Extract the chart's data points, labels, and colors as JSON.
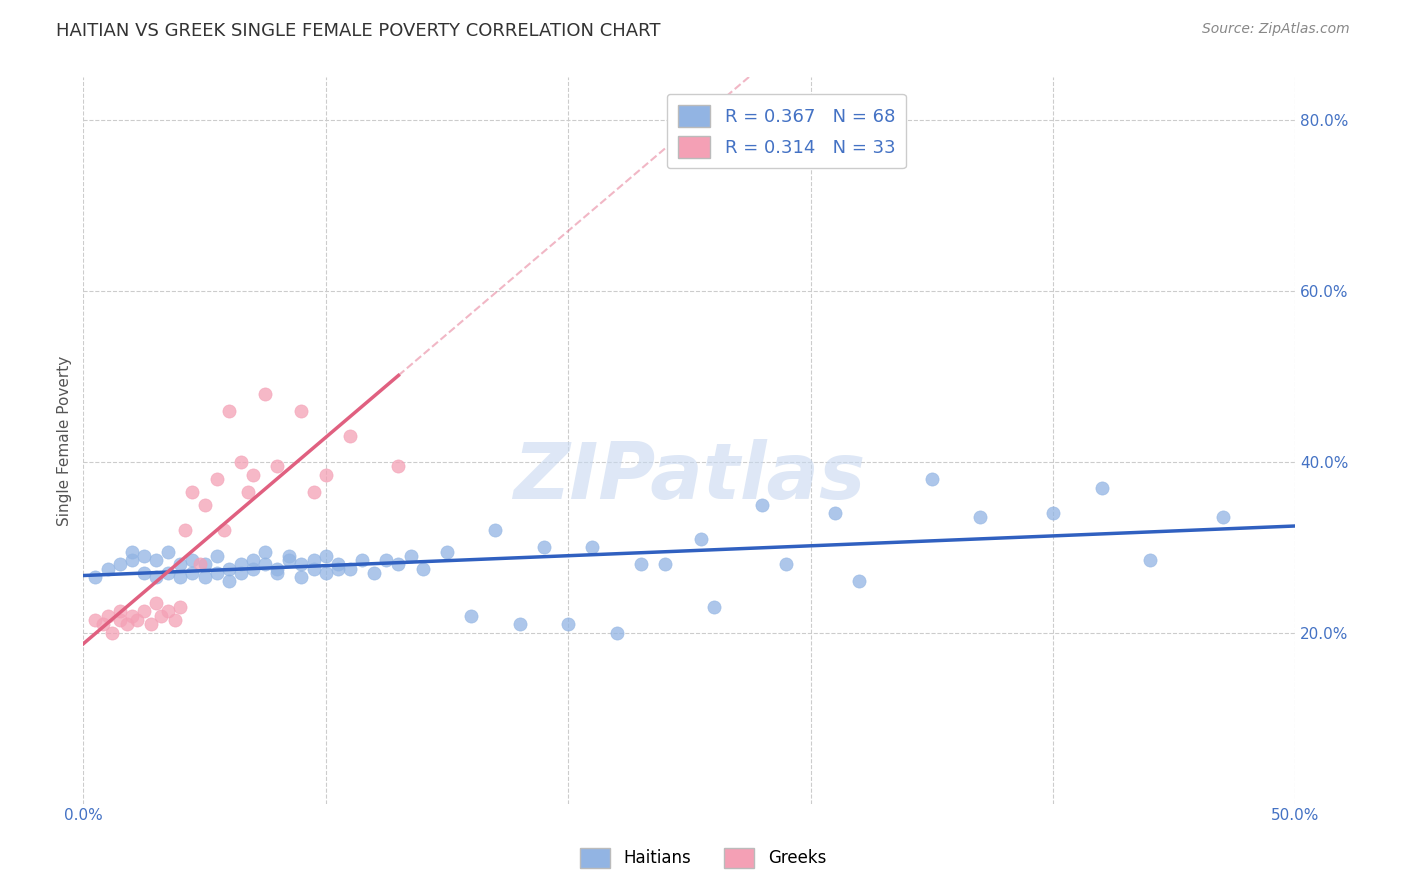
{
  "title": "HAITIAN VS GREEK SINGLE FEMALE POVERTY CORRELATION CHART",
  "source": "Source: ZipAtlas.com",
  "ylabel": "Single Female Poverty",
  "watermark": "ZIPatlas",
  "xlim": [
    0.0,
    0.5
  ],
  "ylim": [
    0.0,
    0.85
  ],
  "x_ticks": [
    0.0,
    0.1,
    0.2,
    0.3,
    0.4,
    0.5
  ],
  "y_ticks_right": [
    0.2,
    0.4,
    0.6,
    0.8
  ],
  "y_tick_labels_right": [
    "20.0%",
    "40.0%",
    "60.0%",
    "80.0%"
  ],
  "legend_R1": "0.367",
  "legend_N1": "68",
  "legend_R2": "0.314",
  "legend_N2": "33",
  "haitian_color": "#92b4e3",
  "greek_color": "#f4a0b5",
  "trend_color_blue": "#3060c0",
  "trend_color_pink": "#e06080",
  "background_color": "#ffffff",
  "grid_color": "#cccccc",
  "title_color": "#333333",
  "source_color": "#888888",
  "axis_label_color": "#555555",
  "tick_color_right": "#4472c4",
  "haitian_scatter": {
    "x": [
      0.005,
      0.01,
      0.015,
      0.02,
      0.02,
      0.025,
      0.025,
      0.03,
      0.03,
      0.035,
      0.035,
      0.04,
      0.04,
      0.045,
      0.045,
      0.05,
      0.05,
      0.055,
      0.055,
      0.06,
      0.06,
      0.065,
      0.065,
      0.07,
      0.07,
      0.075,
      0.075,
      0.08,
      0.08,
      0.085,
      0.085,
      0.09,
      0.09,
      0.095,
      0.095,
      0.1,
      0.1,
      0.105,
      0.105,
      0.11,
      0.115,
      0.12,
      0.125,
      0.13,
      0.135,
      0.14,
      0.15,
      0.16,
      0.17,
      0.18,
      0.19,
      0.2,
      0.21,
      0.22,
      0.23,
      0.24,
      0.255,
      0.26,
      0.28,
      0.29,
      0.31,
      0.32,
      0.35,
      0.37,
      0.4,
      0.42,
      0.44,
      0.47
    ],
    "y": [
      0.265,
      0.275,
      0.28,
      0.285,
      0.295,
      0.27,
      0.29,
      0.265,
      0.285,
      0.27,
      0.295,
      0.265,
      0.28,
      0.27,
      0.285,
      0.265,
      0.28,
      0.27,
      0.29,
      0.275,
      0.26,
      0.28,
      0.27,
      0.285,
      0.275,
      0.295,
      0.28,
      0.275,
      0.27,
      0.29,
      0.285,
      0.265,
      0.28,
      0.275,
      0.285,
      0.27,
      0.29,
      0.275,
      0.28,
      0.275,
      0.285,
      0.27,
      0.285,
      0.28,
      0.29,
      0.275,
      0.295,
      0.22,
      0.32,
      0.21,
      0.3,
      0.21,
      0.3,
      0.2,
      0.28,
      0.28,
      0.31,
      0.23,
      0.35,
      0.28,
      0.34,
      0.26,
      0.38,
      0.335,
      0.34,
      0.37,
      0.285,
      0.335
    ]
  },
  "greek_scatter": {
    "x": [
      0.005,
      0.008,
      0.01,
      0.012,
      0.015,
      0.015,
      0.018,
      0.02,
      0.022,
      0.025,
      0.028,
      0.03,
      0.032,
      0.035,
      0.038,
      0.04,
      0.042,
      0.045,
      0.048,
      0.05,
      0.055,
      0.058,
      0.06,
      0.065,
      0.068,
      0.07,
      0.075,
      0.08,
      0.09,
      0.095,
      0.1,
      0.11,
      0.13
    ],
    "y": [
      0.215,
      0.21,
      0.22,
      0.2,
      0.225,
      0.215,
      0.21,
      0.22,
      0.215,
      0.225,
      0.21,
      0.235,
      0.22,
      0.225,
      0.215,
      0.23,
      0.32,
      0.365,
      0.28,
      0.35,
      0.38,
      0.32,
      0.46,
      0.4,
      0.365,
      0.385,
      0.48,
      0.395,
      0.46,
      0.365,
      0.385,
      0.43,
      0.395
    ]
  }
}
